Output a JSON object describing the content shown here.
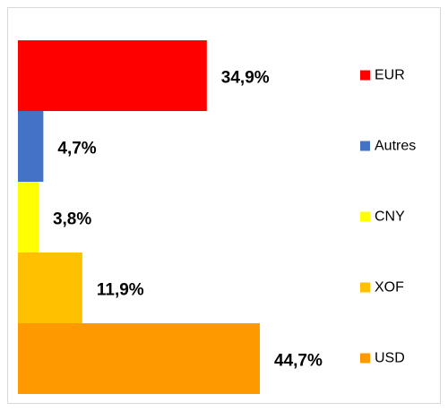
{
  "chart_data": {
    "type": "hbar",
    "categories": [
      "EUR",
      "Autres",
      "CNY",
      "XOF",
      "USD"
    ],
    "values": [
      34.9,
      4.7,
      3.8,
      11.9,
      44.7
    ],
    "value_labels": [
      "34,9%",
      "4,7%",
      "3,8%",
      "11,9%",
      "44,7%"
    ],
    "colors": [
      "#ff0000",
      "#4472c4",
      "#ffff00",
      "#ffc000",
      "#ff9900"
    ],
    "legend": "right"
  }
}
